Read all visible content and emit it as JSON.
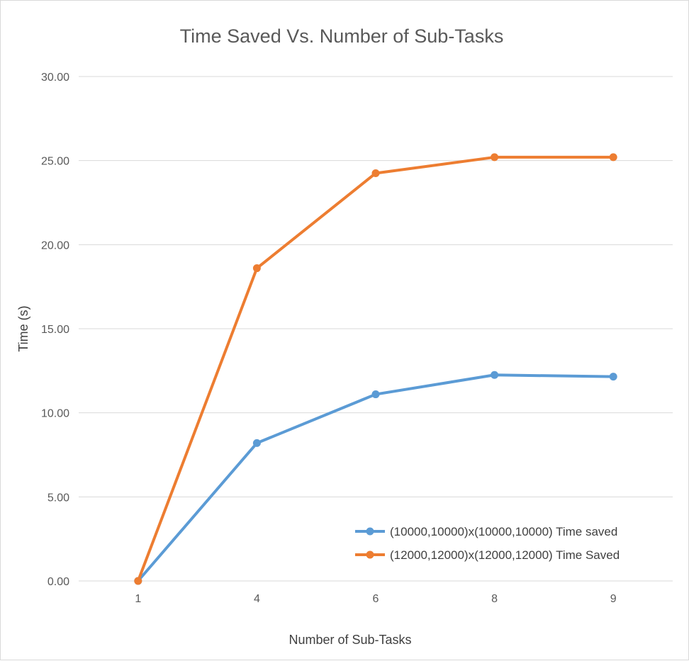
{
  "chart_data": {
    "type": "line",
    "title": "Time Saved Vs. Number of Sub-Tasks",
    "xlabel": "Number of Sub-Tasks",
    "ylabel": "Time (s)",
    "categories": [
      "1",
      "4",
      "6",
      "8",
      "9"
    ],
    "y_ticks": [
      "0.00",
      "5.00",
      "10.00",
      "15.00",
      "20.00",
      "25.00",
      "30.00"
    ],
    "ylim": [
      0,
      30
    ],
    "grid": true,
    "legend_position": "bottom-right",
    "series": [
      {
        "name": "(10000,10000)x(10000,10000) Time saved",
        "color": "#5b9bd5",
        "values": [
          0.0,
          8.2,
          11.1,
          12.25,
          12.15
        ]
      },
      {
        "name": "(12000,12000)x(12000,12000) Time Saved",
        "color": "#ed7d31",
        "values": [
          0.0,
          18.6,
          24.25,
          25.2,
          25.2
        ]
      }
    ]
  }
}
